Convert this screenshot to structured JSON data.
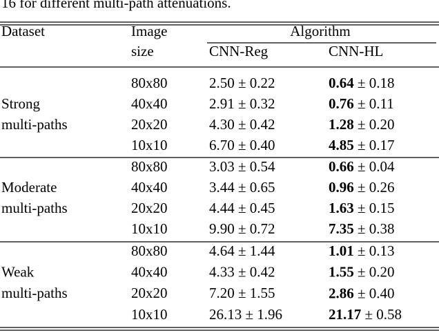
{
  "caption": "16 for different multi-path attenuations.",
  "header": {
    "dataset": "Dataset",
    "image_size": [
      "Image",
      "size"
    ],
    "algorithm": "Algorithm",
    "columns": [
      "CNN-Reg",
      "CNN-HL"
    ]
  },
  "groups": [
    {
      "name": [
        "Strong",
        "multi-paths"
      ],
      "rows": [
        {
          "size": "80x80",
          "cnn_reg": "2.50 ± 0.22",
          "cnn_hl_mean": "0.64",
          "cnn_hl_std": "± 0.18"
        },
        {
          "size": "40x40",
          "cnn_reg": "2.91 ± 0.32",
          "cnn_hl_mean": "0.76",
          "cnn_hl_std": "± 0.11"
        },
        {
          "size": "20x20",
          "cnn_reg": "4.30 ± 0.42",
          "cnn_hl_mean": "1.28",
          "cnn_hl_std": "± 0.20"
        },
        {
          "size": "10x10",
          "cnn_reg": "6.70 ± 0.40",
          "cnn_hl_mean": "4.85",
          "cnn_hl_std": "± 0.17"
        }
      ]
    },
    {
      "name": [
        "Moderate",
        "multi-paths"
      ],
      "rows": [
        {
          "size": "80x80",
          "cnn_reg": "3.03 ± 0.54",
          "cnn_hl_mean": "0.66",
          "cnn_hl_std": "± 0.04"
        },
        {
          "size": "40x40",
          "cnn_reg": "3.44 ± 0.65",
          "cnn_hl_mean": "0.96",
          "cnn_hl_std": "± 0.26"
        },
        {
          "size": "20x20",
          "cnn_reg": "4.44 ± 0.45",
          "cnn_hl_mean": "1.63",
          "cnn_hl_std": "± 0.15"
        },
        {
          "size": "10x10",
          "cnn_reg": "9.90 ± 0.72",
          "cnn_hl_mean": "7.35",
          "cnn_hl_std": "± 0.38"
        }
      ]
    },
    {
      "name": [
        "Weak",
        "multi-paths"
      ],
      "rows": [
        {
          "size": "80x80",
          "cnn_reg": "4.64 ± 1.44",
          "cnn_hl_mean": "1.01",
          "cnn_hl_std": "± 0.13"
        },
        {
          "size": "40x40",
          "cnn_reg": "4.33 ± 0.42",
          "cnn_hl_mean": "1.55",
          "cnn_hl_std": "± 0.20"
        },
        {
          "size": "20x20",
          "cnn_reg": "7.20 ± 1.55",
          "cnn_hl_mean": "2.86",
          "cnn_hl_std": "± 0.40"
        },
        {
          "size": "10x10",
          "cnn_reg": "26.13 ± 1.96",
          "cnn_hl_mean": "21.17",
          "cnn_hl_std": "± 0.58"
        }
      ]
    }
  ]
}
